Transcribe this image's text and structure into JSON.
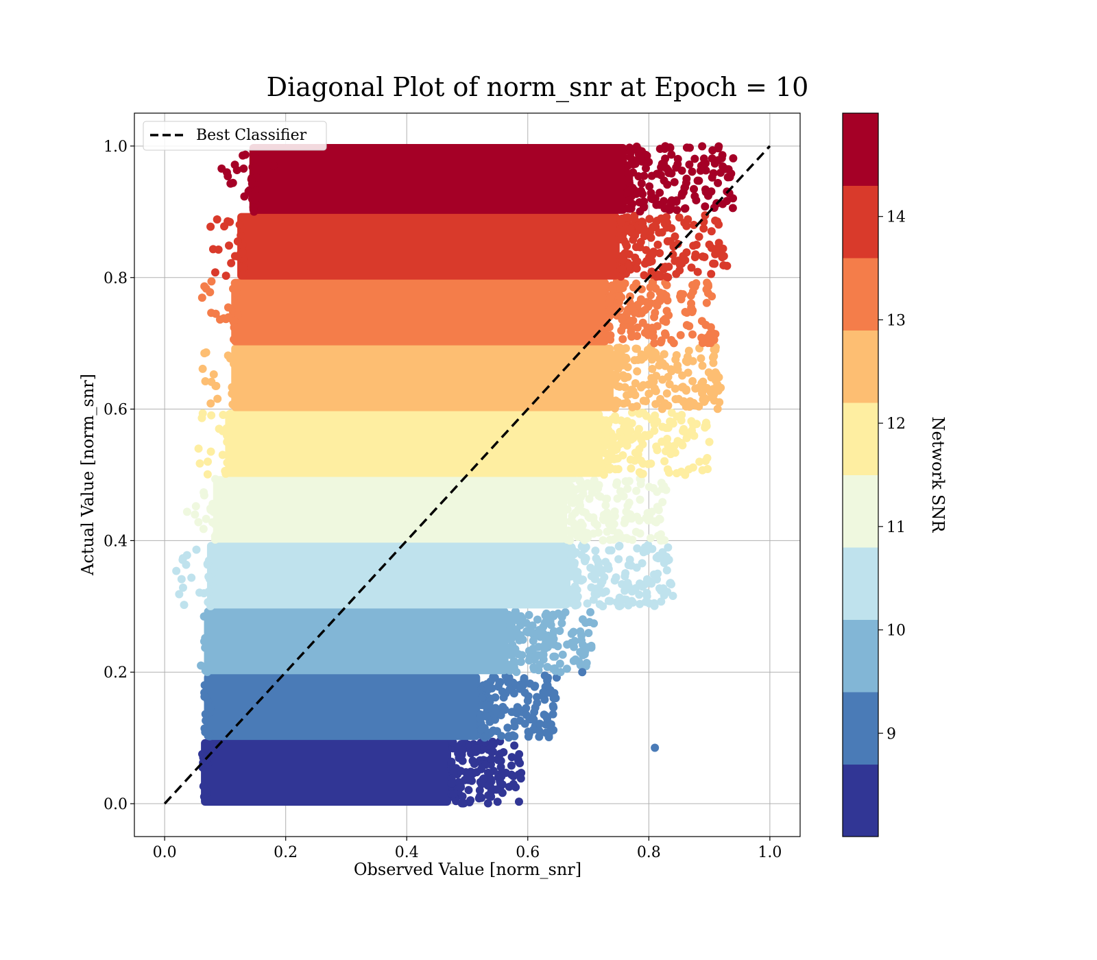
{
  "title": "Diagonal Plot of norm_snr at Epoch = 10",
  "legend": {
    "label": "Best Classifier",
    "placement": "top-left"
  },
  "colorbar": {
    "label": "Network SNR",
    "ticks": [
      "9",
      "10",
      "11",
      "12",
      "13",
      "14"
    ]
  },
  "chart_data": {
    "type": "scatter",
    "title": "Diagonal Plot of norm_snr at Epoch = 10",
    "xlabel": "Observed Value [norm_snr]",
    "ylabel": "Actual Value [norm_snr]",
    "xlim": [
      -0.05,
      1.05
    ],
    "ylim": [
      -0.05,
      1.05
    ],
    "xticks": [
      "0.0",
      "0.2",
      "0.4",
      "0.6",
      "0.8",
      "1.0"
    ],
    "yticks": [
      "0.0",
      "0.2",
      "0.4",
      "0.6",
      "0.8",
      "1.0"
    ],
    "grid": true,
    "reference_line": {
      "name": "Best Classifier",
      "style": "dashed",
      "color": "#000000",
      "x": [
        0.0,
        1.0
      ],
      "y": [
        0.0,
        1.0
      ]
    },
    "colorbar": {
      "label": "Network SNR",
      "ticks": [
        9,
        10,
        11,
        12,
        13,
        14
      ],
      "range": [
        8,
        15
      ],
      "colormap": "RdYlBu_r",
      "levels": [
        "#313695",
        "#4a7bb7",
        "#82b6d6",
        "#bfe2ed",
        "#eff8df",
        "#feeea1",
        "#fdbe72",
        "#f47d4a",
        "#d93a2b",
        "#a50026"
      ]
    },
    "bands": [
      {
        "color": "#313695",
        "y_range": [
          0.0,
          0.095
        ],
        "x_range": [
          0.06,
          0.59
        ]
      },
      {
        "color": "#4a7bb7",
        "y_range": [
          0.1,
          0.195
        ],
        "x_range": [
          0.065,
          0.65
        ]
      },
      {
        "color": "#82b6d6",
        "y_range": [
          0.2,
          0.295
        ],
        "x_range": [
          0.065,
          0.71
        ]
      },
      {
        "color": "#bfe2ed",
        "y_range": [
          0.3,
          0.395
        ],
        "x_range": [
          0.07,
          0.84
        ]
      },
      {
        "color": "#eff8df",
        "y_range": [
          0.4,
          0.495
        ],
        "x_range": [
          0.08,
          0.83
        ]
      },
      {
        "color": "#feeea1",
        "y_range": [
          0.5,
          0.595
        ],
        "x_range": [
          0.1,
          0.9
        ]
      },
      {
        "color": "#fdbe72",
        "y_range": [
          0.6,
          0.695
        ],
        "x_range": [
          0.11,
          0.92
        ]
      },
      {
        "color": "#f47d4a",
        "y_range": [
          0.7,
          0.795
        ],
        "x_range": [
          0.11,
          0.91
        ]
      },
      {
        "color": "#d93a2b",
        "y_range": [
          0.8,
          0.895
        ],
        "x_range": [
          0.12,
          0.93
        ]
      },
      {
        "color": "#a50026",
        "y_range": [
          0.9,
          1.0
        ],
        "x_range": [
          0.14,
          0.94
        ]
      }
    ],
    "outliers": [
      {
        "x": 0.81,
        "y": 0.085,
        "color": "#4a7bb7"
      },
      {
        "x": 0.58,
        "y": 0.025,
        "color": "#313695"
      },
      {
        "x": 0.69,
        "y": 0.2,
        "color": "#4a7bb7"
      },
      {
        "x": 0.705,
        "y": 0.24,
        "color": "#82b6d6"
      },
      {
        "x": 0.835,
        "y": 0.335,
        "color": "#bfe2ed"
      },
      {
        "x": 0.86,
        "y": 0.5,
        "color": "#feeea1"
      },
      {
        "x": 0.91,
        "y": 0.69,
        "color": "#fdbe72"
      },
      {
        "x": 0.18,
        "y": 0.97,
        "color": "#a50026"
      },
      {
        "x": 0.145,
        "y": 0.925,
        "color": "#a50026"
      },
      {
        "x": 0.13,
        "y": 0.805,
        "color": "#d93a2b"
      },
      {
        "x": 0.09,
        "y": 0.57,
        "color": "#feeea1"
      },
      {
        "x": 0.065,
        "y": 0.32,
        "color": "#bfe2ed"
      },
      {
        "x": 0.06,
        "y": 0.21,
        "color": "#82b6d6"
      },
      {
        "x": 0.9,
        "y": 0.55,
        "color": "#feeea1"
      },
      {
        "x": 0.82,
        "y": 0.4,
        "color": "#eff8df"
      }
    ]
  }
}
